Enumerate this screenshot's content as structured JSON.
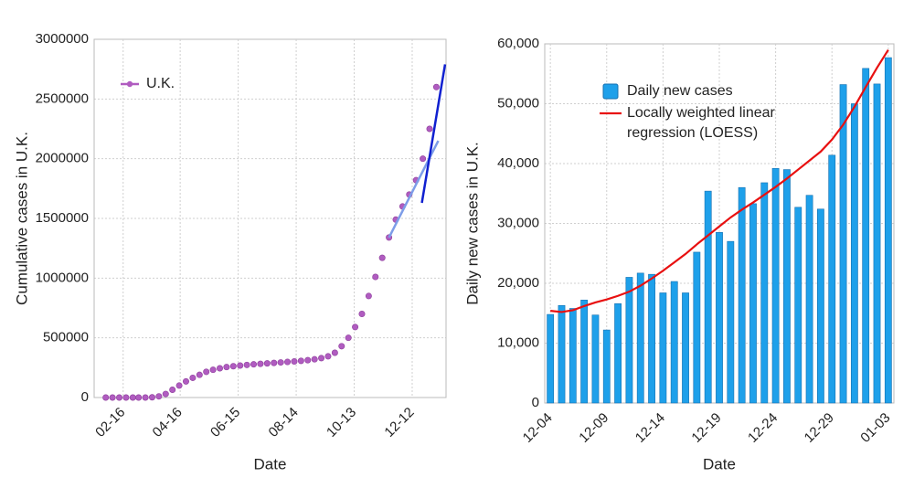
{
  "chart_data": [
    {
      "type": "scatter",
      "x_label": "Date",
      "y_label": "Cumulative cases in U.K.",
      "x": [
        "01-29",
        "02-05",
        "02-12",
        "02-19",
        "02-26",
        "03-04",
        "03-11",
        "03-18",
        "03-25",
        "04-01",
        "04-08",
        "04-15",
        "04-22",
        "04-29",
        "05-06",
        "05-13",
        "05-20",
        "05-27",
        "06-03",
        "06-10",
        "06-17",
        "06-24",
        "07-01",
        "07-08",
        "07-15",
        "07-22",
        "07-29",
        "08-05",
        "08-12",
        "08-19",
        "08-26",
        "09-02",
        "09-09",
        "09-16",
        "09-23",
        "09-30",
        "10-07",
        "10-14",
        "10-21",
        "10-28",
        "11-04",
        "11-11",
        "11-18",
        "11-25",
        "12-02",
        "12-09",
        "12-16",
        "12-23",
        "12-30",
        "01-06"
      ],
      "series": [
        {
          "name": "U.K.",
          "color": "#b05cc0",
          "values": [
            0,
            0,
            0,
            0,
            0,
            0,
            0,
            2000,
            10000,
            30000,
            65000,
            100000,
            135000,
            165000,
            190000,
            215000,
            232000,
            245000,
            255000,
            262000,
            268000,
            273000,
            278000,
            282000,
            286000,
            290000,
            294000,
            298000,
            302000,
            307000,
            313000,
            320000,
            330000,
            345000,
            375000,
            430000,
            500000,
            590000,
            700000,
            850000,
            1010000,
            1170000,
            1340000,
            1490000,
            1600000,
            1700000,
            1820000,
            2000000,
            2250000,
            2600000
          ]
        }
      ],
      "trend_lines": [
        {
          "color": "#7d9de8",
          "x": [
            "11-18",
            "01-08"
          ],
          "values": [
            1340000,
            2150000
          ]
        },
        {
          "color": "#1020d0",
          "x": [
            "12-22",
            "01-15"
          ],
          "values": [
            1630000,
            2790000
          ]
        }
      ],
      "xlim": [
        "01-17",
        "01-16"
      ],
      "xticks": [
        "02-16",
        "04-16",
        "06-15",
        "08-14",
        "10-13",
        "12-12"
      ],
      "ylim": [
        0,
        3000000
      ],
      "yticks": [
        0,
        500000,
        1000000,
        1500000,
        2000000,
        2500000,
        3000000
      ],
      "grid": true
    },
    {
      "type": "bar",
      "x_label": "Date",
      "y_label": "Daily new cases in U.K.",
      "categories": [
        "12-04",
        null,
        null,
        null,
        null,
        "12-09",
        null,
        null,
        null,
        null,
        "12-14",
        null,
        null,
        null,
        null,
        "12-19",
        null,
        null,
        null,
        null,
        "12-24",
        null,
        null,
        null,
        null,
        "12-29",
        null,
        null,
        null,
        null,
        "01-03"
      ],
      "series": [
        {
          "name": "Daily new cases",
          "color": "#1ea0ea",
          "values": [
            14800,
            16300,
            15800,
            17200,
            14700,
            12200,
            16600,
            21000,
            21700,
            21500,
            18400,
            20300,
            18400,
            25200,
            35400,
            28500,
            27000,
            36000,
            33300,
            36800,
            39200,
            39000,
            32700,
            34700,
            32400,
            41400,
            53200,
            50000,
            55900,
            53300,
            57700
          ]
        },
        {
          "name": "Locally weighted linear regression (LOESS)",
          "color": "#e81010",
          "kind": "line",
          "values": [
            15400,
            15200,
            15500,
            16200,
            16800,
            17300,
            17900,
            18600,
            19600,
            20800,
            22100,
            23500,
            24900,
            26500,
            28000,
            29500,
            31000,
            32300,
            33500,
            34800,
            36100,
            37500,
            39000,
            40500,
            42000,
            44000,
            46500,
            49500,
            52800,
            56000,
            59000
          ]
        }
      ],
      "ylim": [
        0,
        60000
      ],
      "yticks": [
        0,
        {
          "value": 10000,
          "label": "10,000"
        },
        {
          "value": 20000,
          "label": "20,000"
        },
        {
          "value": 30000,
          "label": "30,000"
        },
        {
          "value": 40000,
          "label": "40,000"
        },
        {
          "value": 50000,
          "label": "50,000"
        },
        {
          "value": 60000,
          "label": "60,000"
        }
      ],
      "grid": true
    }
  ]
}
